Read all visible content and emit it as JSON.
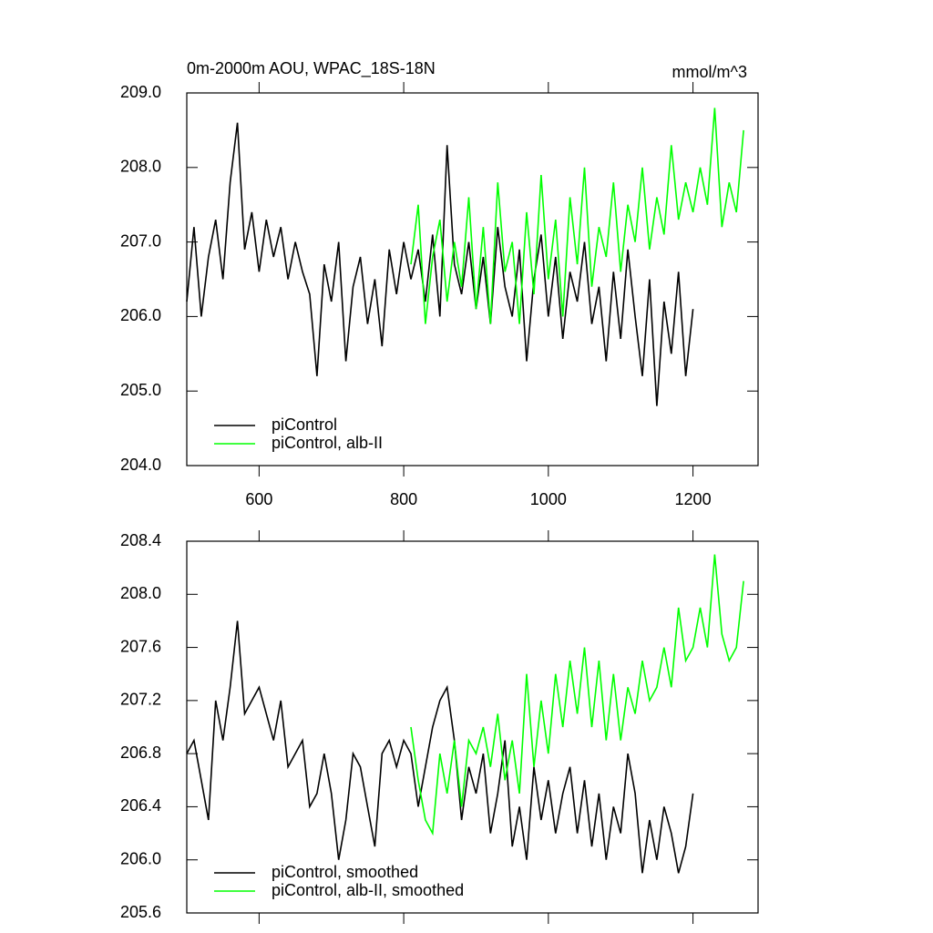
{
  "chart_data": [
    {
      "type": "line",
      "title": "0m-2000m AOU, WPAC_18S-18N",
      "units": "mmol/m^3",
      "xlim": [
        500,
        1290
      ],
      "xticks": [
        600,
        800,
        1000,
        1200
      ],
      "xtick_labels": true,
      "ylim": [
        204,
        209
      ],
      "yticks": [
        {
          "value": 204,
          "label": "204.0"
        },
        {
          "value": 205,
          "label": "205.0"
        },
        {
          "value": 206,
          "label": "206.0"
        },
        {
          "value": 207,
          "label": "207.0"
        },
        {
          "value": 208,
          "label": "208.0"
        },
        {
          "value": 209,
          "label": "209.0"
        }
      ],
      "legend": "lower left",
      "series": [
        {
          "name": "piControl",
          "color": "#000000",
          "x": [
            500,
            510,
            520,
            530,
            540,
            550,
            560,
            570,
            580,
            590,
            600,
            610,
            620,
            630,
            640,
            650,
            660,
            670,
            680,
            690,
            700,
            710,
            720,
            730,
            740,
            750,
            760,
            770,
            780,
            790,
            800,
            810,
            820,
            830,
            840,
            850,
            860,
            870,
            880,
            890,
            900,
            910,
            920,
            930,
            940,
            950,
            960,
            970,
            980,
            990,
            1000,
            1010,
            1020,
            1030,
            1040,
            1050,
            1060,
            1070,
            1080,
            1090,
            1100,
            1110,
            1120,
            1130,
            1140,
            1150,
            1160,
            1170,
            1180,
            1190,
            1200
          ],
          "values": [
            206.2,
            207.2,
            206.0,
            206.8,
            207.3,
            206.5,
            207.8,
            208.6,
            206.9,
            207.4,
            206.6,
            207.3,
            206.8,
            207.2,
            206.5,
            207.0,
            206.6,
            206.3,
            205.2,
            206.7,
            206.2,
            207.0,
            205.4,
            206.4,
            206.8,
            205.9,
            206.5,
            205.6,
            206.9,
            206.3,
            207.0,
            206.5,
            206.9,
            206.2,
            207.1,
            206.0,
            208.3,
            206.7,
            206.3,
            207.0,
            206.1,
            206.8,
            205.9,
            207.2,
            206.4,
            206.0,
            206.9,
            205.4,
            206.5,
            207.1,
            206.0,
            206.8,
            205.7,
            206.6,
            206.2,
            207.0,
            205.9,
            206.4,
            205.4,
            206.6,
            205.7,
            206.9,
            206.0,
            205.2,
            206.5,
            204.8,
            206.2,
            205.5,
            206.6,
            205.2,
            206.1
          ]
        },
        {
          "name": "piControl, alb-II",
          "color": "#00ff00",
          "x": [
            810,
            820,
            830,
            840,
            850,
            860,
            870,
            880,
            890,
            900,
            910,
            920,
            930,
            940,
            950,
            960,
            970,
            980,
            990,
            1000,
            1010,
            1020,
            1030,
            1040,
            1050,
            1060,
            1070,
            1080,
            1090,
            1100,
            1110,
            1120,
            1130,
            1140,
            1150,
            1160,
            1170,
            1180,
            1190,
            1200,
            1210,
            1220,
            1230,
            1240,
            1250,
            1260,
            1270
          ],
          "values": [
            206.7,
            207.5,
            205.9,
            206.8,
            207.3,
            206.2,
            207.0,
            206.4,
            207.6,
            206.1,
            207.2,
            205.9,
            207.8,
            206.6,
            207.0,
            205.9,
            207.4,
            206.3,
            207.9,
            206.5,
            207.3,
            206.0,
            207.6,
            206.7,
            208.0,
            206.4,
            207.2,
            206.8,
            207.8,
            206.6,
            207.5,
            207.0,
            208.0,
            206.9,
            207.6,
            207.1,
            208.3,
            207.3,
            207.8,
            207.4,
            208.0,
            207.5,
            208.8,
            207.2,
            207.8,
            207.4,
            208.5
          ]
        }
      ]
    },
    {
      "type": "line",
      "xlim": [
        500,
        1290
      ],
      "xticks": [
        600,
        800,
        1000,
        1200
      ],
      "xtick_labels": false,
      "ylim": [
        205.6,
        208.4
      ],
      "yticks": [
        205.6,
        {
          "value": 206,
          "label": "206.0"
        },
        206.4,
        206.8,
        207.2,
        207.6,
        {
          "value": 208,
          "label": "208.0"
        },
        208.4
      ],
      "legend": "lower left",
      "series": [
        {
          "name": "piControl, smoothed",
          "color": "#000000",
          "x": [
            500,
            510,
            520,
            530,
            540,
            550,
            560,
            570,
            580,
            590,
            600,
            610,
            620,
            630,
            640,
            650,
            660,
            670,
            680,
            690,
            700,
            710,
            720,
            730,
            740,
            750,
            760,
            770,
            780,
            790,
            800,
            810,
            820,
            830,
            840,
            850,
            860,
            870,
            880,
            890,
            900,
            910,
            920,
            930,
            940,
            950,
            960,
            970,
            980,
            990,
            1000,
            1010,
            1020,
            1030,
            1040,
            1050,
            1060,
            1070,
            1080,
            1090,
            1100,
            1110,
            1120,
            1130,
            1140,
            1150,
            1160,
            1170,
            1180,
            1190,
            1200
          ],
          "values": [
            206.8,
            206.9,
            206.6,
            206.3,
            207.2,
            206.9,
            207.3,
            207.8,
            207.1,
            207.2,
            207.3,
            207.1,
            206.9,
            207.2,
            206.7,
            206.8,
            206.9,
            206.4,
            206.5,
            206.8,
            206.5,
            206.0,
            206.3,
            206.8,
            206.7,
            206.4,
            206.1,
            206.8,
            206.9,
            206.7,
            206.9,
            206.8,
            206.4,
            206.7,
            207.0,
            207.2,
            207.3,
            206.9,
            206.3,
            206.7,
            206.5,
            206.8,
            206.2,
            206.5,
            206.9,
            206.1,
            206.4,
            206.0,
            206.7,
            206.3,
            206.6,
            206.2,
            206.5,
            206.7,
            206.2,
            206.6,
            206.1,
            206.5,
            206.0,
            206.4,
            206.2,
            206.8,
            206.5,
            205.9,
            206.3,
            206.0,
            206.4,
            206.2,
            205.9,
            206.1,
            206.5
          ]
        },
        {
          "name": "piControl, alb-II, smoothed",
          "color": "#00ff00",
          "x": [
            810,
            820,
            830,
            840,
            850,
            860,
            870,
            880,
            890,
            900,
            910,
            920,
            930,
            940,
            950,
            960,
            970,
            980,
            990,
            1000,
            1010,
            1020,
            1030,
            1040,
            1050,
            1060,
            1070,
            1080,
            1090,
            1100,
            1110,
            1120,
            1130,
            1140,
            1150,
            1160,
            1170,
            1180,
            1190,
            1200,
            1210,
            1220,
            1230,
            1240,
            1250,
            1260,
            1270
          ],
          "values": [
            207.0,
            206.6,
            206.3,
            206.2,
            206.8,
            206.5,
            206.9,
            206.4,
            206.9,
            206.8,
            207.0,
            206.7,
            207.1,
            206.6,
            206.9,
            206.5,
            207.4,
            206.7,
            207.2,
            206.8,
            207.4,
            207.0,
            207.5,
            207.1,
            207.6,
            207.0,
            207.5,
            206.9,
            207.4,
            206.9,
            207.3,
            207.1,
            207.5,
            207.2,
            207.3,
            207.6,
            207.3,
            207.9,
            207.5,
            207.6,
            207.9,
            207.6,
            208.3,
            207.7,
            207.5,
            207.6,
            208.1
          ]
        }
      ]
    }
  ]
}
